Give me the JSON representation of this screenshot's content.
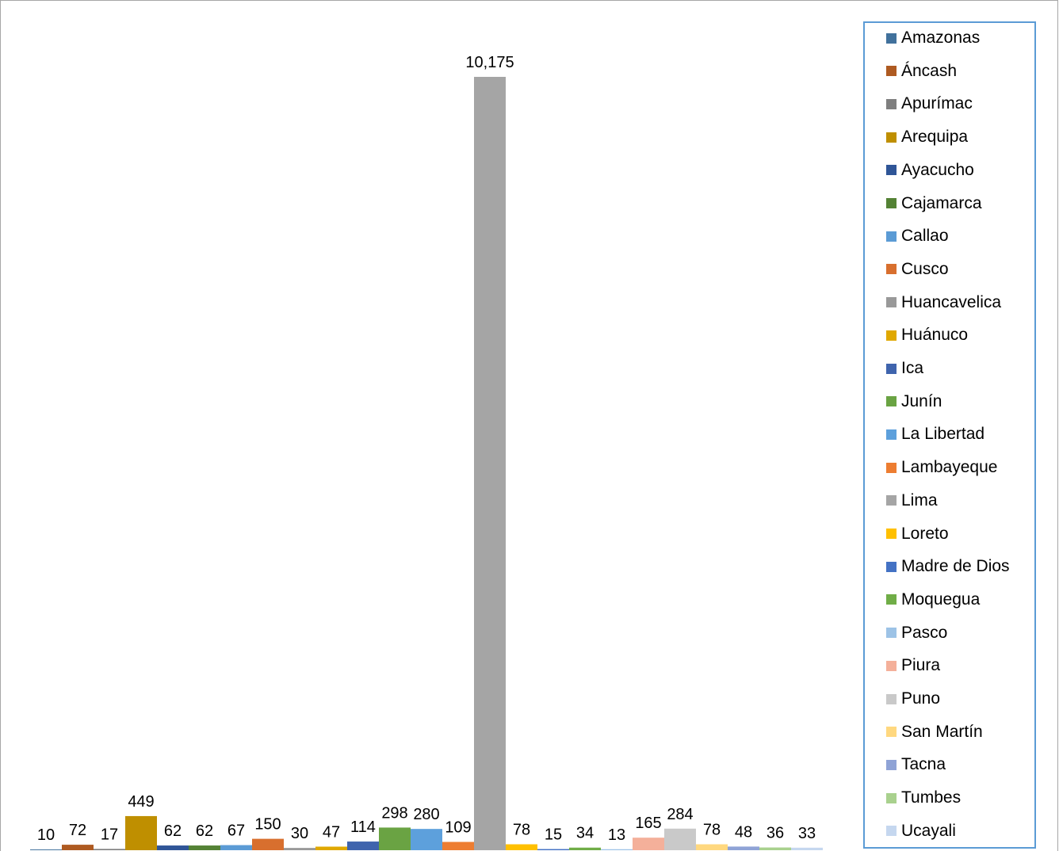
{
  "chart_data": {
    "type": "bar",
    "title": "",
    "xlabel": "",
    "ylabel": "",
    "ylim": [
      0,
      11000
    ],
    "grid": false,
    "legend_position": "right",
    "series": [
      {
        "name": "Amazonas",
        "value": 10,
        "label": "10",
        "color": "#41719c"
      },
      {
        "name": "Áncash",
        "value": 72,
        "label": "72",
        "color": "#ae5a21"
      },
      {
        "name": "Apurímac",
        "value": 17,
        "label": "17",
        "color": "#7f7f7f"
      },
      {
        "name": "Arequipa",
        "value": 449,
        "label": "449",
        "color": "#bf8f00"
      },
      {
        "name": "Ayacucho",
        "value": 62,
        "label": "62",
        "color": "#2f5597"
      },
      {
        "name": "Cajamarca",
        "value": 62,
        "label": "62",
        "color": "#548235"
      },
      {
        "name": "Callao",
        "value": 67,
        "label": "67",
        "color": "#5b9bd5"
      },
      {
        "name": "Cusco",
        "value": 150,
        "label": "150",
        "color": "#d86f2e"
      },
      {
        "name": "Huancavelica",
        "value": 30,
        "label": "30",
        "color": "#999999"
      },
      {
        "name": "Huánuco",
        "value": 47,
        "label": "47",
        "color": "#e0a800"
      },
      {
        "name": "Ica",
        "value": 114,
        "label": "114",
        "color": "#3f64ad"
      },
      {
        "name": "Junín",
        "value": 298,
        "label": "298",
        "color": "#6aa343"
      },
      {
        "name": "La Libertad",
        "value": 280,
        "label": "280",
        "color": "#5da0dc"
      },
      {
        "name": "Lambayeque",
        "value": 109,
        "label": "109",
        "color": "#ed7d31"
      },
      {
        "name": "Lima",
        "value": 10175,
        "label": "10,175",
        "color": "#a5a5a5"
      },
      {
        "name": "Loreto",
        "value": 78,
        "label": "78",
        "color": "#ffc000"
      },
      {
        "name": "Madre de Dios",
        "value": 15,
        "label": "15",
        "color": "#4472c4"
      },
      {
        "name": "Moquegua",
        "value": 34,
        "label": "34",
        "color": "#70ad47"
      },
      {
        "name": "Pasco",
        "value": 13,
        "label": "13",
        "color": "#9dc3e6"
      },
      {
        "name": "Piura",
        "value": 165,
        "label": "165",
        "color": "#f4b09a"
      },
      {
        "name": "Puno",
        "value": 284,
        "label": "284",
        "color": "#c9c9c9"
      },
      {
        "name": "San Martín",
        "value": 78,
        "label": "78",
        "color": "#ffd87f"
      },
      {
        "name": "Tacna",
        "value": 48,
        "label": "48",
        "color": "#8fa3d6"
      },
      {
        "name": "Tumbes",
        "value": 36,
        "label": "36",
        "color": "#a9d18e"
      },
      {
        "name": "Ucayali",
        "value": 33,
        "label": "33",
        "color": "#c5d7ef"
      }
    ]
  }
}
